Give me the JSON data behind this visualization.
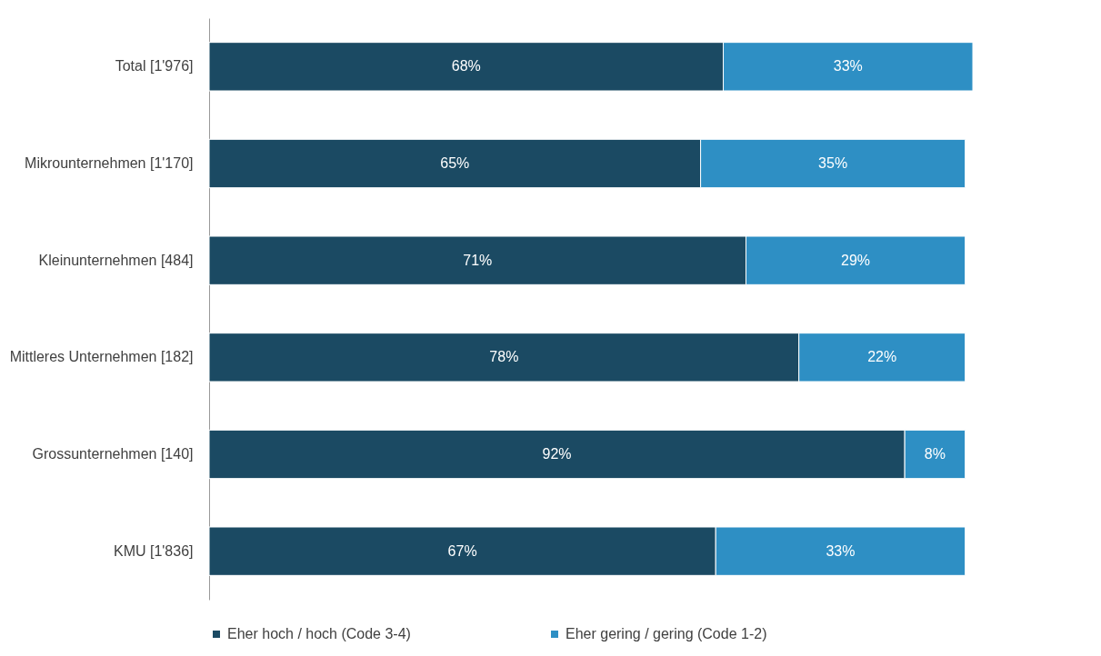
{
  "chart_data": {
    "type": "bar",
    "orientation": "horizontal",
    "stacked": true,
    "legend": "bottom",
    "grid": false,
    "categories": [
      "Total [1'976]",
      "Mikrounternehmen [1'170]",
      "Kleinunternehmen [484]",
      "Mittleres Unternehmen [182]",
      "Grossunternehmen [140]",
      "KMU [1'836]"
    ],
    "series": [
      {
        "name": "Eher hoch / hoch (Code 3-4)",
        "color": "#1b4a63",
        "values": [
          68,
          65,
          71,
          78,
          92,
          67
        ],
        "value_labels": [
          "68%",
          "65%",
          "71%",
          "78%",
          "92%",
          "67%"
        ]
      },
      {
        "name": "Eher gering / gering (Code 1-2)",
        "color": "#2e8fc4",
        "values": [
          33,
          35,
          29,
          22,
          8,
          33
        ],
        "value_labels": [
          "33%",
          "35%",
          "29%",
          "22%",
          "8%",
          "33%"
        ]
      }
    ]
  }
}
